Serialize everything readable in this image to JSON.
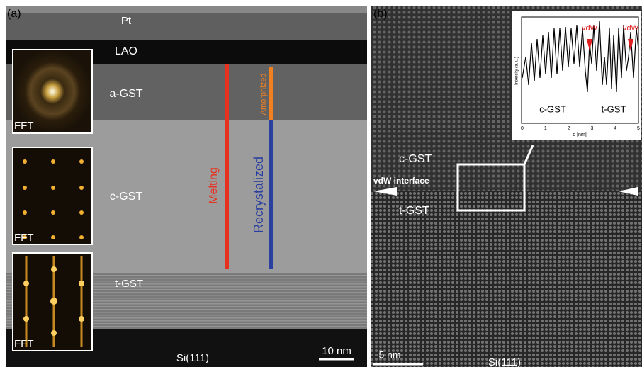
{
  "panel_a": {
    "label": "(a)",
    "layers": [
      "Pt",
      "LAO",
      "a-GST",
      "c-GST",
      "t-GST"
    ],
    "fft_labels": [
      "FFT",
      "FFT",
      "FFT"
    ],
    "lines": [
      "Melting",
      "Amorphized",
      "Recrystalized"
    ],
    "substrate": "Si(111)",
    "scale_bar": "10 nm"
  },
  "panel_b": {
    "label": "(b)",
    "upper": "c-GST",
    "interface": "vdW interface",
    "lower": "t-GST",
    "scale_bar": "5 nm",
    "substrate": "Si(111)",
    "inset": {
      "y_label": "Intensity (a. u.)",
      "x_label": "d [nm]",
      "xticks": [
        "0",
        "1",
        "2",
        "3",
        "4",
        "5"
      ],
      "markers": [
        "vdW",
        "vdW"
      ],
      "left_phase": "c-GST",
      "right_phase": "t-GST"
    }
  }
}
